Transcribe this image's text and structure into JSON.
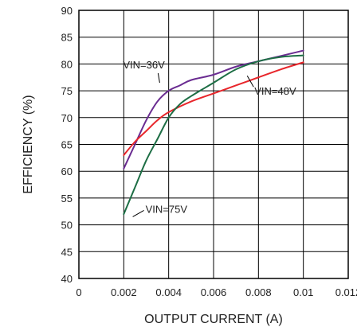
{
  "chart_data": {
    "type": "line",
    "xlabel": "OUTPUT CURRENT (A)",
    "ylabel": "EFFICIENCY (%)",
    "xlim": [
      0,
      0.012
    ],
    "ylim": [
      40,
      90
    ],
    "xticks": [
      "0",
      "0.002",
      "0.004",
      "0.006",
      "0.008",
      "0.01",
      "0.012"
    ],
    "yticks": [
      "40",
      "45",
      "50",
      "55",
      "60",
      "65",
      "70",
      "75",
      "80",
      "85",
      "90"
    ],
    "grid": true,
    "series": [
      {
        "name": "VIN=36V",
        "color": "#6a2c91",
        "x": [
          0.002,
          0.0025,
          0.003,
          0.0035,
          0.004,
          0.0045,
          0.005,
          0.006,
          0.007,
          0.008,
          0.009,
          0.01
        ],
        "y": [
          60.5,
          65.0,
          69.5,
          73.0,
          75.0,
          76.0,
          77.0,
          78.0,
          79.5,
          80.5,
          81.5,
          82.5
        ]
      },
      {
        "name": "VIN=48V",
        "color": "#e8262b",
        "x": [
          0.002,
          0.0025,
          0.003,
          0.0035,
          0.004,
          0.005,
          0.006,
          0.007,
          0.008,
          0.009,
          0.01
        ],
        "y": [
          63.0,
          65.5,
          67.5,
          69.5,
          71.0,
          73.0,
          74.5,
          76.0,
          77.5,
          79.0,
          80.3
        ]
      },
      {
        "name": "VIN=75V",
        "color": "#1d6e45",
        "x": [
          0.002,
          0.0025,
          0.003,
          0.0035,
          0.004,
          0.0045,
          0.005,
          0.006,
          0.007,
          0.008,
          0.009,
          0.01
        ],
        "y": [
          52.0,
          57.0,
          62.0,
          66.0,
          70.0,
          72.5,
          74.0,
          76.5,
          79.0,
          80.5,
          81.3,
          81.6
        ]
      }
    ],
    "annotations": [
      {
        "text": "VIN=36V",
        "series": 0,
        "point_x": 0.0036,
        "point_y": 76.5
      },
      {
        "text": "VIN=48V",
        "series": 1,
        "point_x": 0.0075,
        "point_y": 77.8
      },
      {
        "text": "VIN=75V",
        "series": 2,
        "point_x": 0.0024,
        "point_y": 51.5
      }
    ]
  }
}
